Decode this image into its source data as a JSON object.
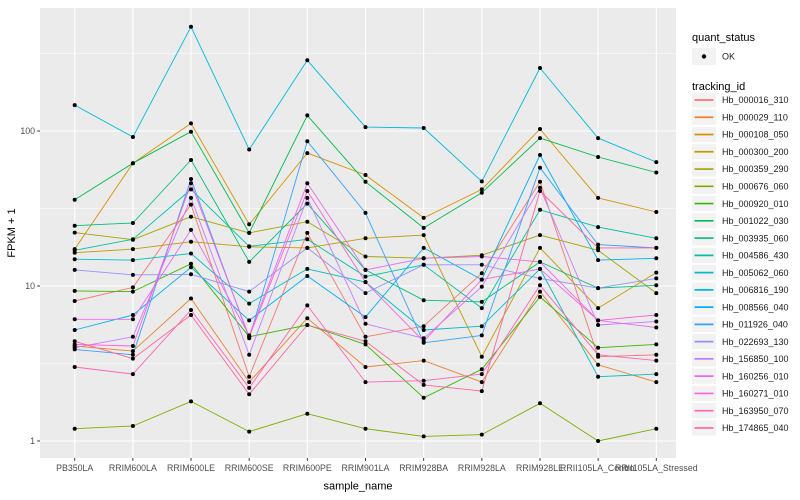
{
  "figure": {
    "y_axis": {
      "title": "FPKM + 1",
      "tick_labels": [
        "1",
        "10",
        "100"
      ]
    },
    "x_axis": {
      "title": "sample_name"
    },
    "legend": {
      "quant_status": {
        "title": "quant_status",
        "ok_label": "OK"
      },
      "tracking_id": {
        "title": "tracking_id"
      }
    },
    "panel_background": "#EBEBEB",
    "gridline_color": "#FFFFFF",
    "point_color": "#000000"
  },
  "chart_data": {
    "type": "line",
    "title": "",
    "xlabel": "sample_name",
    "ylabel": "FPKM + 1",
    "y_scale": "log10",
    "ylim": [
      1,
      620
    ],
    "y_ticks": [
      1,
      10,
      100
    ],
    "y_minor_ticks": [
      3.1623,
      31.623,
      316.23
    ],
    "grid": "white major and minor horizontal, major vertical per category",
    "legend_position": "right",
    "quant_status": "OK",
    "categories": [
      "PB350LA",
      "RRIM600LA",
      "RRIM600LE",
      "RRIM600SE",
      "RRIM600PE",
      "RRIM901LA",
      "RRIM928BA",
      "RRIM928LA",
      "RRIM928LE",
      "RRII105LA_Control",
      "RRII105LA_Stressed"
    ],
    "series": [
      {
        "name": "Hb_000016_310",
        "color": "#F8766D",
        "values": [
          8.0,
          9.8,
          33.5,
          2.6,
          22,
          4.7,
          5.5,
          12.1,
          47,
          3.5,
          3.6
        ]
      },
      {
        "name": "Hb_000029_110",
        "color": "#EA8331",
        "values": [
          4.1,
          3.8,
          8.3,
          2.4,
          6.2,
          3.0,
          3.3,
          2.4,
          9.2,
          3.1,
          2.4
        ]
      },
      {
        "name": "Hb_000108_050",
        "color": "#D89000",
        "values": [
          17.3,
          62,
          112,
          25,
          72,
          52,
          27.5,
          42,
          103,
          37,
          30
        ]
      },
      {
        "name": "Hb_000300_200",
        "color": "#C09B00",
        "values": [
          16.4,
          17.3,
          19.3,
          17.9,
          17.6,
          20.3,
          21.3,
          3.5,
          17.6,
          7.2,
          12.2
        ]
      },
      {
        "name": "Hb_000359_290",
        "color": "#A3A500",
        "values": [
          22.1,
          19.9,
          28,
          22,
          26,
          15.5,
          15.1,
          15.8,
          21.3,
          17,
          9.0
        ]
      },
      {
        "name": "Hb_000676_060",
        "color": "#7CAE00",
        "values": [
          1.2,
          1.25,
          1.8,
          1.15,
          1.5,
          1.2,
          1.07,
          1.1,
          1.75,
          1.0,
          1.2
        ]
      },
      {
        "name": "Hb_000920_010",
        "color": "#39B600",
        "values": [
          9.3,
          9.2,
          13.9,
          4.7,
          5.6,
          4.2,
          1.9,
          2.9,
          8.5,
          4.0,
          4.2
        ]
      },
      {
        "name": "Hb_001022_030",
        "color": "#00BB4E",
        "values": [
          36,
          62,
          99,
          22,
          126,
          47,
          23.7,
          40,
          90,
          68,
          54
        ]
      },
      {
        "name": "Hb_003935_060",
        "color": "#00BF7D",
        "values": [
          24.5,
          25.5,
          65,
          14.3,
          34,
          12.7,
          8.1,
          7.9,
          14.3,
          9.7,
          10.1
        ]
      },
      {
        "name": "Hb_004586_430",
        "color": "#00C1A3",
        "values": [
          17.0,
          20,
          42,
          18,
          20,
          11.5,
          13.7,
          7.2,
          31,
          24,
          20.3
        ]
      },
      {
        "name": "Hb_005062_060",
        "color": "#00BFC4",
        "values": [
          14.9,
          14.7,
          16.2,
          7.7,
          12.9,
          10.6,
          5.2,
          5.5,
          12.9,
          2.6,
          2.7
        ]
      },
      {
        "name": "Hb_006816_190",
        "color": "#00BAE0",
        "values": [
          147,
          91.5,
          470,
          76,
          286,
          106,
          104.5,
          47.3,
          255,
          90,
          63
        ]
      },
      {
        "name": "Hb_008566_040",
        "color": "#00B0F6",
        "values": [
          5.2,
          6.5,
          13.2,
          6.0,
          11.6,
          6.3,
          17.6,
          11.0,
          70,
          14.7,
          15.1
        ]
      },
      {
        "name": "Hb_011926_040",
        "color": "#35A2FF",
        "values": [
          3.9,
          3.6,
          49,
          4.6,
          86,
          29.6,
          4.3,
          4.8,
          58,
          18.5,
          17.6
        ]
      },
      {
        "name": "Hb_022693_130",
        "color": "#9590FF",
        "values": [
          12.7,
          11.8,
          11.9,
          9.2,
          17.6,
          9.0,
          13.7,
          13.7,
          11.2,
          9.7,
          11.2
        ]
      },
      {
        "name": "Hb_156850_100",
        "color": "#C77CFF",
        "values": [
          4.0,
          4.7,
          37,
          3.6,
          37,
          5.7,
          4.6,
          9.9,
          43,
          5.6,
          5.9
        ]
      },
      {
        "name": "Hb_160256_010",
        "color": "#E76BF3",
        "values": [
          6.1,
          6.1,
          23,
          4.8,
          46,
          12.7,
          15.1,
          15.5,
          14.3,
          6.0,
          5.4
        ]
      },
      {
        "name": "Hb_160271_010",
        "color": "#FA62DB",
        "values": [
          4.2,
          4.1,
          46,
          4.7,
          41,
          10.6,
          4.4,
          11.0,
          12.9,
          6.0,
          6.5
        ]
      },
      {
        "name": "Hb_163950_070",
        "color": "#FF62BC",
        "values": [
          3.0,
          2.7,
          7.0,
          2.2,
          7.5,
          2.4,
          2.45,
          2.7,
          10.1,
          3.6,
          3.3
        ]
      },
      {
        "name": "Hb_174865_040",
        "color": "#FF6598",
        "values": [
          4.4,
          3.4,
          6.5,
          2.0,
          5.6,
          4.4,
          2.3,
          2.1,
          41,
          17.6,
          17.6
        ]
      }
    ]
  }
}
